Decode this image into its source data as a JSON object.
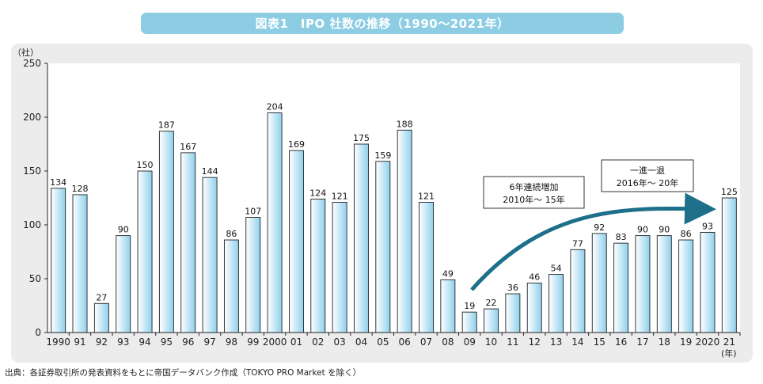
{
  "title": "図表1　IPO 社数の推移（1990〜2021年）",
  "source": "出典：各証券取引所の発表資料をもとに帝国データバンク作成（TOKYO PRO Market を除く）",
  "colors": {
    "title_bg": "#8ccde4",
    "bar_light": "#ffffff",
    "bar_dark": "#8fd0ec",
    "arrow": "#1d6f8a",
    "panel": "#ececec"
  },
  "chart_data": {
    "type": "bar",
    "y_unit": "（社）",
    "x_unit": "(年)",
    "ylim": [
      0,
      250
    ],
    "yticks": [
      0,
      50,
      100,
      150,
      200,
      250
    ],
    "grid": false,
    "categories": [
      "1990",
      "91",
      "92",
      "93",
      "94",
      "95",
      "96",
      "97",
      "98",
      "99",
      "2000",
      "01",
      "02",
      "03",
      "04",
      "05",
      "06",
      "07",
      "08",
      "09",
      "10",
      "11",
      "12",
      "13",
      "14",
      "15",
      "16",
      "17",
      "18",
      "19",
      "2020",
      "21"
    ],
    "values": [
      134,
      128,
      27,
      90,
      150,
      187,
      167,
      144,
      86,
      107,
      204,
      169,
      124,
      121,
      175,
      159,
      188,
      121,
      49,
      19,
      22,
      36,
      46,
      54,
      77,
      92,
      83,
      90,
      90,
      86,
      93,
      125
    ],
    "annotations": [
      {
        "lines": [
          "6年連続増加",
          "2010年〜 15年"
        ]
      },
      {
        "lines": [
          "一進一退",
          "2016年〜 20年"
        ]
      }
    ]
  }
}
